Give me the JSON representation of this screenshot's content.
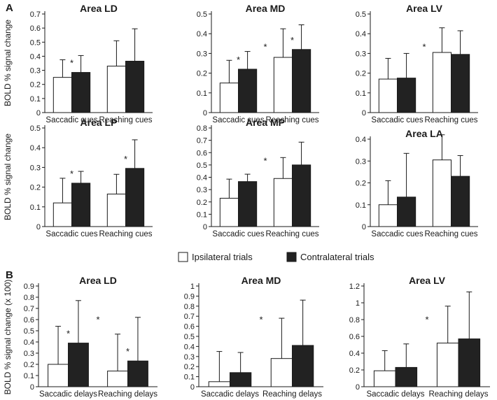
{
  "figure": {
    "panel_labels": [
      "A",
      "B"
    ],
    "ylabel_a": "BOLD % signal change",
    "ylabel_b": "BOLD % signal change (x 100)",
    "legend": [
      {
        "label": "Ipsilateral trials",
        "color": "#ffffff"
      },
      {
        "label": "Contralateral trials",
        "color": "#222222"
      }
    ]
  },
  "chart_data": [
    {
      "type": "bar",
      "title": "Area LD",
      "categories": [
        "Saccadic cues",
        "Reaching cues"
      ],
      "series": [
        {
          "name": "Ipsilateral trials",
          "values": [
            0.25,
            0.33
          ],
          "errors": [
            0.125,
            0.18
          ]
        },
        {
          "name": "Contralateral trials",
          "values": [
            0.285,
            0.365
          ],
          "errors": [
            0.12,
            0.23
          ]
        }
      ],
      "ylim": [
        0,
        0.7
      ],
      "yticks": [
        "0",
        "0.1",
        "0.2",
        "0.3",
        "0.4",
        "0.5",
        "0.6",
        "0.7"
      ],
      "stars": [
        {
          "group": 0,
          "pos": "pair"
        }
      ]
    },
    {
      "type": "bar",
      "title": "Area MD",
      "categories": [
        "Saccadic cues",
        "Reaching cues"
      ],
      "series": [
        {
          "name": "Ipsilateral trials",
          "values": [
            0.15,
            0.28
          ],
          "errors": [
            0.115,
            0.145
          ]
        },
        {
          "name": "Contralateral trials",
          "values": [
            0.22,
            0.32
          ],
          "errors": [
            0.09,
            0.125
          ]
        }
      ],
      "ylim": [
        0,
        0.5
      ],
      "yticks": [
        "0",
        "0.1",
        "0.2",
        "0.3",
        "0.4",
        "0.5"
      ],
      "stars": [
        {
          "group": 0,
          "pos": "pair"
        },
        {
          "group": 1,
          "pos": "pair"
        },
        {
          "pos": "between"
        }
      ]
    },
    {
      "type": "bar",
      "title": "Area LV",
      "categories": [
        "Saccadic cues",
        "Reaching cues"
      ],
      "series": [
        {
          "name": "Ipsilateral trials",
          "values": [
            0.17,
            0.305
          ],
          "errors": [
            0.105,
            0.125
          ]
        },
        {
          "name": "Contralateral trials",
          "values": [
            0.175,
            0.295
          ],
          "errors": [
            0.125,
            0.12
          ]
        }
      ],
      "ylim": [
        0,
        0.5
      ],
      "yticks": [
        "0",
        "0.1",
        "0.2",
        "0.3",
        "0.4",
        "0.5"
      ],
      "stars": [
        {
          "pos": "between"
        }
      ]
    },
    {
      "type": "bar",
      "title": "Area LP",
      "categories": [
        "Saccadic cues",
        "Reaching cues"
      ],
      "series": [
        {
          "name": "Ipsilateral trials",
          "values": [
            0.12,
            0.165
          ],
          "errors": [
            0.125,
            0.1
          ]
        },
        {
          "name": "Contralateral trials",
          "values": [
            0.22,
            0.295
          ],
          "errors": [
            0.06,
            0.145
          ]
        }
      ],
      "ylim": [
        0,
        0.5
      ],
      "yticks": [
        "0",
        "0.1",
        "0.2",
        "0.3",
        "0.4",
        "0.5"
      ],
      "stars": [
        {
          "group": 0,
          "pos": "pair"
        },
        {
          "group": 1,
          "pos": "pair"
        }
      ]
    },
    {
      "type": "bar",
      "title": "Area MP",
      "categories": [
        "Saccadic cues",
        "Reaching cues"
      ],
      "series": [
        {
          "name": "Ipsilateral trials",
          "values": [
            0.23,
            0.39
          ],
          "errors": [
            0.155,
            0.17
          ]
        },
        {
          "name": "Contralateral trials",
          "values": [
            0.365,
            0.5
          ],
          "errors": [
            0.06,
            0.185
          ]
        }
      ],
      "ylim": [
        0,
        0.8
      ],
      "yticks": [
        "0",
        "0.1",
        "0.2",
        "0.3",
        "0.4",
        "0.5",
        "0.6",
        "0.7",
        "0.8"
      ],
      "stars": [
        {
          "pos": "between"
        }
      ]
    },
    {
      "type": "bar",
      "title": "Area LA",
      "categories": [
        "Saccadic cues",
        "Reaching cues"
      ],
      "series": [
        {
          "name": "Ipsilateral trials",
          "values": [
            0.1,
            0.305
          ],
          "errors": [
            0.11,
            0.115
          ]
        },
        {
          "name": "Contralateral trials",
          "values": [
            0.135,
            0.23
          ],
          "errors": [
            0.2,
            0.095
          ]
        }
      ],
      "ylim": [
        0,
        0.4
      ],
      "yticks": [
        "0",
        "0.1",
        "0.2",
        "0.3",
        "0.4"
      ],
      "stars": []
    },
    {
      "type": "bar",
      "title": "Area LD",
      "categories": [
        "Saccadic delays",
        "Reaching delays"
      ],
      "series": [
        {
          "name": "Ipsilateral trials",
          "values": [
            0.2,
            0.14
          ],
          "errors": [
            0.34,
            0.33
          ]
        },
        {
          "name": "Contralateral trials",
          "values": [
            0.39,
            0.23
          ],
          "errors": [
            0.38,
            0.39
          ]
        }
      ],
      "ylim": [
        0,
        0.9
      ],
      "yticks": [
        "0",
        "0.1",
        "0.2",
        "0.3",
        "0.4",
        "0.5",
        "0.6",
        "0.7",
        "0.8",
        "0.9"
      ],
      "stars": [
        {
          "group": 0,
          "pos": "pair"
        },
        {
          "group": 1,
          "pos": "pair"
        },
        {
          "pos": "between"
        }
      ]
    },
    {
      "type": "bar",
      "title": "Area MD",
      "categories": [
        "Saccadic delays",
        "Reaching delays"
      ],
      "series": [
        {
          "name": "Ipsilateral trials",
          "values": [
            0.05,
            0.28
          ],
          "errors": [
            0.3,
            0.4
          ]
        },
        {
          "name": "Contralateral trials",
          "values": [
            0.14,
            0.41
          ],
          "errors": [
            0.2,
            0.45
          ]
        }
      ],
      "ylim": [
        0,
        1
      ],
      "yticks": [
        "0",
        "0.1",
        "0.2",
        "0.3",
        "0.4",
        "0.5",
        "0.6",
        "0.7",
        "0.8",
        "0.9",
        "1"
      ],
      "stars": [
        {
          "pos": "between"
        }
      ]
    },
    {
      "type": "bar",
      "title": "Area LV",
      "categories": [
        "Saccadic delays",
        "Reaching delays"
      ],
      "series": [
        {
          "name": "Ipsilateral trials",
          "values": [
            0.19,
            0.52
          ],
          "errors": [
            0.24,
            0.44
          ]
        },
        {
          "name": "Contralateral trials",
          "values": [
            0.23,
            0.57
          ],
          "errors": [
            0.28,
            0.56
          ]
        }
      ],
      "ylim": [
        0,
        1.2
      ],
      "yticks": [
        "0",
        "0.2",
        "0.4",
        "0.6",
        "0.8",
        "1",
        "1.2"
      ],
      "stars": [
        {
          "pos": "between"
        }
      ]
    }
  ]
}
